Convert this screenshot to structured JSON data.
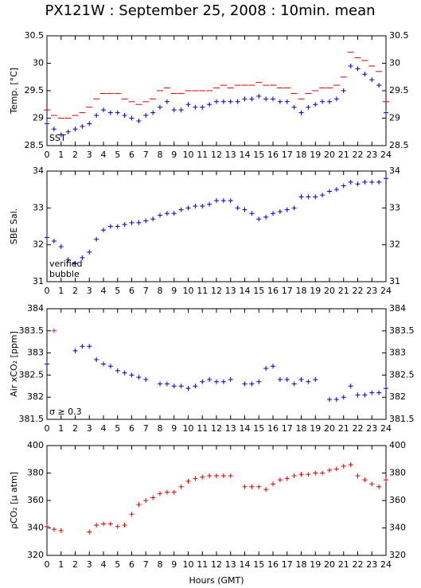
{
  "chart_data": [
    {
      "type": "scatter",
      "title": "PX121W : September 25, 2008 : 10min. mean",
      "ylabel": "Temp. [°C]",
      "x": [
        0,
        0.5,
        1,
        1.5,
        2,
        2.5,
        3,
        3.5,
        4,
        4.5,
        5,
        5.5,
        6,
        6.5,
        7,
        7.5,
        8,
        8.5,
        9,
        9.5,
        10,
        10.5,
        11,
        11.5,
        12,
        12.5,
        13,
        13.5,
        14,
        14.5,
        15,
        15.5,
        16,
        16.5,
        17,
        17.5,
        18,
        18.5,
        19,
        19.5,
        20,
        20.5,
        21,
        21.5,
        22,
        22.5,
        23,
        23.5,
        24
      ],
      "series": [
        {
          "color": "#dd0000",
          "marker": "dash",
          "values": [
            29.15,
            29.05,
            29.0,
            29.0,
            29.05,
            29.1,
            29.2,
            29.35,
            29.45,
            29.45,
            29.45,
            29.35,
            29.3,
            29.25,
            29.3,
            29.35,
            29.5,
            29.55,
            29.45,
            29.45,
            29.5,
            29.5,
            29.5,
            29.5,
            29.55,
            29.6,
            29.55,
            29.6,
            29.6,
            29.6,
            29.65,
            29.6,
            29.6,
            29.55,
            29.55,
            29.45,
            29.35,
            29.45,
            29.5,
            29.55,
            29.55,
            29.6,
            29.75,
            30.2,
            30.1,
            30.05,
            29.95,
            29.85,
            29.3
          ]
        },
        {
          "name": "SST",
          "color": "#0000cc",
          "marker": "plus",
          "values": [
            28.9,
            28.8,
            28.7,
            28.75,
            28.8,
            28.85,
            28.9,
            29.05,
            29.15,
            29.1,
            29.1,
            29.05,
            29.0,
            28.95,
            29.05,
            29.1,
            29.2,
            29.3,
            29.15,
            29.15,
            29.25,
            29.2,
            29.2,
            29.25,
            29.3,
            29.3,
            29.3,
            29.3,
            29.35,
            29.35,
            29.4,
            29.35,
            29.35,
            29.3,
            29.3,
            29.2,
            29.1,
            29.2,
            29.25,
            29.3,
            29.3,
            29.35,
            29.5,
            29.95,
            29.9,
            29.8,
            29.7,
            29.6,
            29.1
          ]
        }
      ],
      "xlim": [
        0,
        24
      ],
      "xticks": [
        0,
        1,
        2,
        3,
        4,
        5,
        6,
        7,
        8,
        9,
        10,
        11,
        12,
        13,
        14,
        15,
        16,
        17,
        18,
        19,
        20,
        21,
        22,
        23,
        24
      ],
      "ylim": [
        28.5,
        30.5
      ],
      "yticks": [
        28.5,
        29,
        29.5,
        30,
        30.5
      ]
    },
    {
      "type": "scatter",
      "ylabel": "SBE Sal.",
      "x": [
        0,
        0.5,
        1,
        1.5,
        2,
        2.5,
        3,
        3.5,
        4,
        4.5,
        5,
        5.5,
        6,
        6.5,
        7,
        7.5,
        8,
        8.5,
        9,
        9.5,
        10,
        10.5,
        11,
        11.5,
        12,
        12.5,
        13,
        13.5,
        14,
        14.5,
        15,
        15.5,
        16,
        16.5,
        17,
        17.5,
        18,
        18.5,
        19,
        19.5,
        20,
        20.5,
        21,
        21.5,
        22,
        22.5,
        23,
        23.5,
        24
      ],
      "series": [
        {
          "name": "verified",
          "color": "#0000cc",
          "marker": "plus",
          "values": [
            32.2,
            32.1,
            31.95,
            31.6,
            31.5,
            31.65,
            31.8,
            32.15,
            32.4,
            32.5,
            32.5,
            32.55,
            32.6,
            32.6,
            32.65,
            32.7,
            32.8,
            32.85,
            32.85,
            32.95,
            33.0,
            33.05,
            33.05,
            33.1,
            33.2,
            33.2,
            33.2,
            33.0,
            32.95,
            32.85,
            32.7,
            32.75,
            32.85,
            32.9,
            32.95,
            33.0,
            33.3,
            33.3,
            33.3,
            33.35,
            33.45,
            33.5,
            33.6,
            33.7,
            33.65,
            33.7,
            33.7,
            33.7,
            33.8
          ]
        },
        {
          "name": "bubble",
          "color": "#cc00cc",
          "marker": "plus",
          "values": [
            null,
            null,
            null,
            null,
            null,
            null,
            null,
            null,
            null,
            null,
            null,
            null,
            null,
            null,
            null,
            null,
            null,
            null,
            null,
            null,
            null,
            null,
            null,
            null,
            null,
            null,
            null,
            null,
            null,
            null,
            null,
            null,
            null,
            null,
            null,
            null,
            null,
            null,
            null,
            null,
            null,
            null,
            null,
            null,
            null,
            null,
            null,
            null,
            null
          ]
        }
      ],
      "xlim": [
        0,
        24
      ],
      "xticks": [
        0,
        1,
        2,
        3,
        4,
        5,
        6,
        7,
        8,
        9,
        10,
        11,
        12,
        13,
        14,
        15,
        16,
        17,
        18,
        19,
        20,
        21,
        22,
        23,
        24
      ],
      "ylim": [
        31,
        34
      ],
      "yticks": [
        31,
        32,
        33,
        34
      ]
    },
    {
      "type": "scatter",
      "ylabel": "Air xCO₂ [ppm]",
      "x": [
        0,
        0.5,
        1,
        1.5,
        2,
        2.5,
        3,
        3.5,
        4,
        4.5,
        5,
        5.5,
        6,
        6.5,
        7,
        7.5,
        8,
        8.5,
        9,
        9.5,
        10,
        10.5,
        11,
        11.5,
        12,
        12.5,
        13,
        13.5,
        14,
        14.5,
        15,
        15.5,
        16,
        16.5,
        17,
        17.5,
        18,
        18.5,
        19,
        19.5,
        20,
        20.5,
        21,
        21.5,
        22,
        22.5,
        23,
        23.5,
        24
      ],
      "series": [
        {
          "color": "#0000cc",
          "marker": "plus",
          "values": [
            382.75,
            null,
            null,
            null,
            383.05,
            383.15,
            383.15,
            382.85,
            382.75,
            382.7,
            382.6,
            382.55,
            382.5,
            382.45,
            382.4,
            null,
            382.3,
            382.3,
            382.25,
            382.25,
            382.2,
            382.25,
            382.35,
            382.4,
            382.35,
            382.35,
            382.4,
            null,
            382.3,
            382.3,
            382.35,
            382.65,
            382.7,
            382.4,
            382.4,
            382.3,
            382.4,
            382.35,
            382.4,
            null,
            381.95,
            381.95,
            382.0,
            382.25,
            382.05,
            382.05,
            382.1,
            382.1,
            382.2
          ]
        },
        {
          "name": "σ ≥ 0.3",
          "color": "#cc00cc",
          "marker": "plus",
          "values": [
            null,
            383.5,
            null,
            null,
            null,
            null,
            null,
            null,
            null,
            null,
            null,
            null,
            null,
            null,
            null,
            null,
            null,
            null,
            null,
            null,
            null,
            null,
            null,
            null,
            null,
            null,
            null,
            null,
            null,
            null,
            null,
            null,
            null,
            null,
            null,
            null,
            null,
            null,
            null,
            null,
            null,
            null,
            null,
            null,
            null,
            null,
            null,
            null,
            null
          ]
        }
      ],
      "xlim": [
        0,
        24
      ],
      "xticks": [
        0,
        1,
        2,
        3,
        4,
        5,
        6,
        7,
        8,
        9,
        10,
        11,
        12,
        13,
        14,
        15,
        16,
        17,
        18,
        19,
        20,
        21,
        22,
        23,
        24
      ],
      "ylim": [
        381.5,
        384
      ],
      "yticks": [
        381.5,
        382,
        382.5,
        383,
        383.5,
        384
      ]
    },
    {
      "type": "scatter",
      "ylabel": "ρCO₂ [μ atm]",
      "xlabel": "Hours (GMT)",
      "x": [
        0,
        0.5,
        1,
        1.5,
        2,
        2.5,
        3,
        3.5,
        4,
        4.5,
        5,
        5.5,
        6,
        6.5,
        7,
        7.5,
        8,
        8.5,
        9,
        9.5,
        10,
        10.5,
        11,
        11.5,
        12,
        12.5,
        13,
        13.5,
        14,
        14.5,
        15,
        15.5,
        16,
        16.5,
        17,
        17.5,
        18,
        18.5,
        19,
        19.5,
        20,
        20.5,
        21,
        21.5,
        22,
        22.5,
        23,
        23.5,
        24
      ],
      "series": [
        {
          "color": "#dd0000",
          "marker": "plus",
          "values": [
            341,
            339,
            338,
            null,
            null,
            null,
            337,
            342,
            343,
            343,
            341,
            342,
            350,
            357,
            360,
            362,
            365,
            366,
            366,
            370,
            374,
            376,
            377,
            378,
            378,
            378,
            378,
            null,
            370,
            370,
            370,
            368,
            372,
            375,
            376,
            378,
            379,
            379,
            380,
            380,
            382,
            383,
            385,
            386,
            378,
            375,
            372,
            370,
            375
          ]
        }
      ],
      "xlim": [
        0,
        24
      ],
      "xticks": [
        0,
        1,
        2,
        3,
        4,
        5,
        6,
        7,
        8,
        9,
        10,
        11,
        12,
        13,
        14,
        15,
        16,
        17,
        18,
        19,
        20,
        21,
        22,
        23,
        24
      ],
      "ylim": [
        320,
        400
      ],
      "yticks": [
        320,
        340,
        360,
        380,
        400
      ]
    }
  ]
}
